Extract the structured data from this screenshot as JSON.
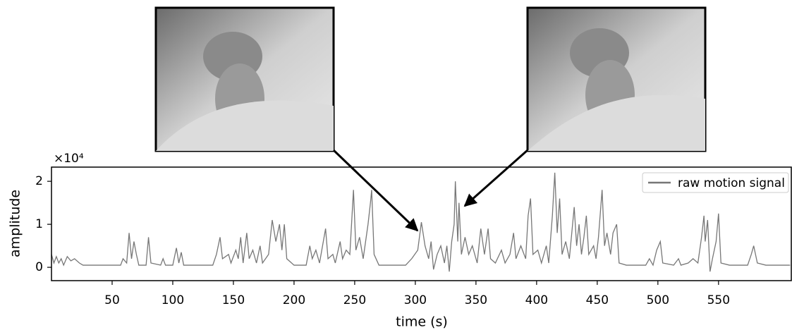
{
  "chart_data": {
    "type": "line",
    "y_multiplier": "×10⁴",
    "xlabel": "time (s)",
    "ylabel": "amplitude",
    "xlim": [
      0,
      610
    ],
    "ylim": [
      -0.31,
      2.33
    ],
    "xticks": [
      50,
      100,
      150,
      200,
      250,
      300,
      350,
      400,
      450,
      500,
      550
    ],
    "yticks": [
      0,
      1,
      2
    ],
    "legend": "upper right",
    "x": [
      0,
      2,
      4,
      6,
      8,
      10,
      13,
      16,
      19,
      23,
      26,
      41,
      57,
      59,
      62,
      64,
      66,
      68,
      70,
      72,
      78,
      80,
      82,
      90,
      92,
      94,
      100,
      103,
      105,
      107,
      109,
      133,
      136,
      139,
      141,
      146,
      148,
      152,
      154,
      156,
      158,
      161,
      163,
      166,
      169,
      172,
      174,
      179,
      182,
      185,
      188,
      190,
      192,
      194,
      200,
      210,
      213,
      215,
      218,
      221,
      226,
      228,
      232,
      234,
      238,
      240,
      243,
      246,
      249,
      251,
      254,
      257,
      261,
      263,
      264,
      266,
      270,
      282,
      292,
      297,
      302,
      305,
      308,
      311,
      313,
      315,
      318,
      321,
      324,
      326,
      328,
      330,
      332,
      333,
      335,
      336,
      338,
      341,
      344,
      347,
      351,
      354,
      357,
      360,
      362,
      366,
      371,
      374,
      378,
      381,
      383,
      387,
      391,
      393,
      395,
      397,
      401,
      404,
      408,
      410,
      413,
      415,
      417,
      419,
      421,
      424,
      427,
      431,
      433,
      435,
      437,
      439,
      441,
      443,
      447,
      449,
      451,
      454,
      456,
      458,
      461,
      463,
      466,
      468,
      474,
      490,
      493,
      496,
      499,
      502,
      504,
      513,
      517,
      519,
      525,
      529,
      533,
      536,
      538,
      539,
      541,
      543,
      545,
      548,
      550,
      552,
      559,
      574,
      577,
      579,
      582,
      589,
      609
    ],
    "series": [
      {
        "name": "raw motion signal",
        "color": "#777777",
        "values": [
          0.3,
          0.1,
          0.25,
          0.1,
          0.2,
          0.05,
          0.25,
          0.15,
          0.2,
          0.1,
          0.05,
          0.05,
          0.05,
          0.2,
          0.1,
          0.8,
          0.2,
          0.6,
          0.3,
          0.05,
          0.05,
          0.7,
          0.1,
          0.05,
          0.2,
          0.05,
          0.05,
          0.45,
          0.1,
          0.35,
          0.05,
          0.05,
          0.3,
          0.7,
          0.2,
          0.3,
          0.1,
          0.4,
          0.2,
          0.7,
          0.1,
          0.8,
          0.2,
          0.4,
          0.1,
          0.5,
          0.1,
          0.3,
          1.1,
          0.6,
          1.0,
          0.4,
          1.0,
          0.2,
          0.05,
          0.05,
          0.5,
          0.2,
          0.4,
          0.1,
          0.9,
          0.2,
          0.3,
          0.1,
          0.6,
          0.2,
          0.4,
          0.3,
          1.8,
          0.4,
          0.7,
          0.2,
          1.0,
          1.5,
          1.8,
          0.3,
          0.05,
          0.05,
          0.05,
          0.2,
          0.4,
          1.05,
          0.5,
          0.2,
          0.6,
          -0.05,
          0.3,
          0.5,
          0.1,
          0.5,
          -0.1,
          0.6,
          1.0,
          2.0,
          0.6,
          1.5,
          0.3,
          0.7,
          0.3,
          0.5,
          0.1,
          0.9,
          0.3,
          0.9,
          0.2,
          0.1,
          0.4,
          0.1,
          0.3,
          0.8,
          0.2,
          0.5,
          0.2,
          1.2,
          1.6,
          0.3,
          0.4,
          0.1,
          0.5,
          0.1,
          1.2,
          2.2,
          0.8,
          1.6,
          0.3,
          0.6,
          0.2,
          1.4,
          0.5,
          1.0,
          0.3,
          0.7,
          1.2,
          0.3,
          0.5,
          0.2,
          0.7,
          1.8,
          0.5,
          0.8,
          0.3,
          0.8,
          1.0,
          0.1,
          0.05,
          0.05,
          0.2,
          0.05,
          0.4,
          0.6,
          0.1,
          0.05,
          0.2,
          0.05,
          0.1,
          0.2,
          0.1,
          0.7,
          1.2,
          0.6,
          1.1,
          -0.1,
          0.2,
          0.6,
          1.25,
          0.1,
          0.05,
          0.05,
          0.3,
          0.5,
          0.1,
          0.05,
          0.05
        ]
      }
    ]
  }
}
